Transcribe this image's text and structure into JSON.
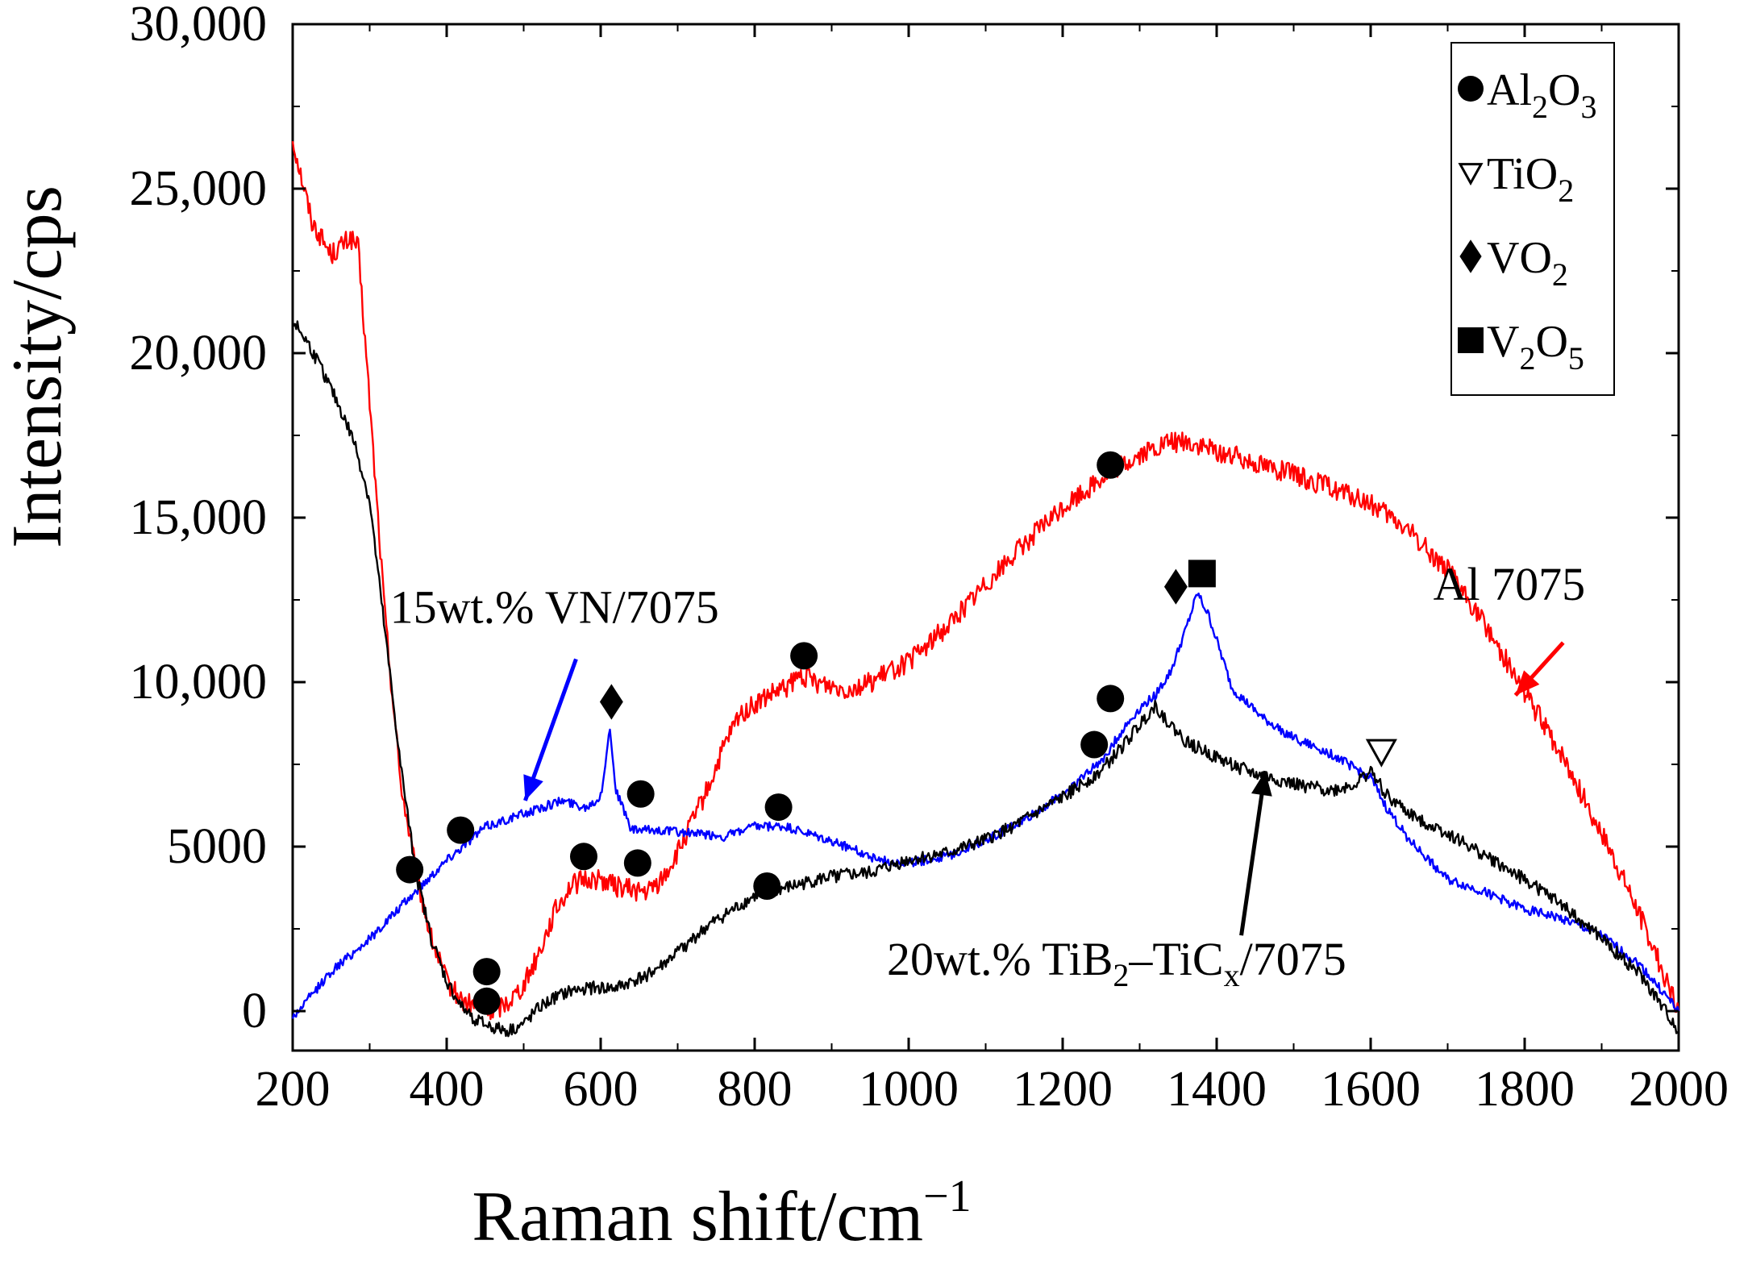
{
  "chart_data": {
    "type": "line",
    "title": "",
    "xlabel": "Raman shift/cm",
    "xlabel_superscript": "−1",
    "ylabel": "Intensity/cps",
    "xlim": [
      200,
      2000
    ],
    "ylim": [
      -1200,
      30000
    ],
    "grid": false,
    "x_ticks": [
      200,
      400,
      600,
      800,
      1000,
      1200,
      1400,
      1600,
      1800,
      2000
    ],
    "x_tick_labels": [
      "200",
      "400",
      "600",
      "800",
      "1000",
      "1200",
      "1400",
      "1600",
      "1800",
      "2000"
    ],
    "y_ticks": [
      0,
      5000,
      10000,
      15000,
      20000,
      25000,
      30000
    ],
    "y_tick_labels": [
      "0",
      "5000",
      "10,000",
      "15,000",
      "20,000",
      "25,000",
      "30,000"
    ],
    "series": [
      {
        "name": "Al 7075",
        "color": "#ff0000",
        "x": [
          200,
          225,
          250,
          275,
          285,
          300,
          320,
          340,
          360,
          380,
          400,
          420,
          440,
          460,
          480,
          500,
          520,
          540,
          560,
          580,
          600,
          620,
          640,
          660,
          680,
          700,
          720,
          740,
          760,
          780,
          800,
          820,
          840,
          860,
          880,
          900,
          920,
          940,
          960,
          980,
          1000,
          1050,
          1100,
          1150,
          1200,
          1250,
          1300,
          1340,
          1360,
          1400,
          1450,
          1500,
          1550,
          1600,
          1650,
          1700,
          1750,
          1800,
          1850,
          1900,
          1950,
          2000
        ],
        "y": [
          26500,
          24000,
          23000,
          23500,
          23200,
          18500,
          12000,
          7000,
          4200,
          2200,
          900,
          300,
          100,
          0,
          300,
          800,
          1800,
          3000,
          3800,
          4000,
          4000,
          3800,
          3700,
          3600,
          4000,
          4800,
          5800,
          6800,
          8000,
          9000,
          9300,
          9600,
          9800,
          10200,
          10000,
          9900,
          9800,
          9900,
          10100,
          10400,
          10600,
          11700,
          13000,
          14200,
          15300,
          16200,
          16900,
          17300,
          17300,
          17000,
          16700,
          16300,
          15900,
          15400,
          14600,
          13400,
          11700,
          9700,
          7700,
          5400,
          2900,
          0
        ]
      },
      {
        "name": "15wt.% VN/7075",
        "color": "#0000ff",
        "x": [
          200,
          250,
          300,
          350,
          400,
          450,
          500,
          550,
          580,
          600,
          612,
          620,
          640,
          680,
          720,
          760,
          800,
          840,
          880,
          920,
          960,
          1000,
          1050,
          1100,
          1150,
          1200,
          1250,
          1280,
          1300,
          1320,
          1340,
          1360,
          1375,
          1390,
          1420,
          1460,
          1500,
          1550,
          1600,
          1620,
          1650,
          1700,
          1750,
          1800,
          1850,
          1900,
          1950,
          2000
        ],
        "y": [
          -200,
          1200,
          2200,
          3400,
          4600,
          5600,
          6000,
          6400,
          6200,
          6500,
          8600,
          6700,
          5500,
          5500,
          5400,
          5300,
          5600,
          5600,
          5300,
          5000,
          4600,
          4500,
          4700,
          5200,
          5800,
          6600,
          7600,
          8600,
          9200,
          9600,
          10300,
          11600,
          12700,
          12000,
          9800,
          8900,
          8300,
          7800,
          7100,
          6200,
          5200,
          4000,
          3600,
          3100,
          2800,
          2300,
          1400,
          0
        ]
      },
      {
        "name": "20wt.% TiB2–TiCx/7075",
        "color": "#000000",
        "x": [
          200,
          220,
          240,
          260,
          280,
          300,
          320,
          340,
          360,
          380,
          400,
          420,
          440,
          460,
          480,
          500,
          520,
          540,
          560,
          580,
          600,
          620,
          640,
          660,
          680,
          700,
          720,
          740,
          760,
          780,
          800,
          850,
          900,
          950,
          1000,
          1050,
          1100,
          1150,
          1200,
          1250,
          1280,
          1300,
          1320,
          1340,
          1360,
          1400,
          1450,
          1500,
          1550,
          1580,
          1600,
          1620,
          1650,
          1700,
          1750,
          1800,
          1850,
          1900,
          1950,
          2000
        ],
        "y": [
          21000,
          20300,
          19400,
          18400,
          17300,
          15500,
          11500,
          7500,
          4200,
          2200,
          900,
          100,
          -300,
          -500,
          -600,
          -400,
          100,
          400,
          600,
          700,
          700,
          700,
          900,
          1100,
          1400,
          1800,
          2200,
          2600,
          2900,
          3200,
          3500,
          3800,
          4100,
          4200,
          4600,
          4800,
          5200,
          5800,
          6500,
          7300,
          8100,
          8700,
          9300,
          8700,
          8200,
          7700,
          7200,
          6900,
          6700,
          6900,
          7300,
          6600,
          6000,
          5400,
          4700,
          4000,
          3200,
          2200,
          1100,
          -600
        ]
      }
    ],
    "legend": {
      "position": "top-right",
      "entries": [
        {
          "marker": "circle",
          "label": "Al",
          "sub1": "2",
          "label2": "O",
          "sub2": "3"
        },
        {
          "marker": "triangle-down-open",
          "label": "TiO",
          "sub1": "2",
          "label2": "",
          "sub2": ""
        },
        {
          "marker": "diamond",
          "label": "VO",
          "sub1": "2",
          "label2": "",
          "sub2": ""
        },
        {
          "marker": "square",
          "label": "V",
          "sub1": "2",
          "label2": "O",
          "sub2": "5"
        }
      ]
    },
    "phase_markers": [
      {
        "phase": "Al2O3",
        "marker": "circle",
        "x": 352,
        "y": 4300
      },
      {
        "phase": "Al2O3",
        "marker": "circle",
        "x": 418,
        "y": 5500
      },
      {
        "phase": "Al2O3",
        "marker": "circle",
        "x": 452,
        "y": 1200
      },
      {
        "phase": "Al2O3",
        "marker": "circle",
        "x": 452,
        "y": 300
      },
      {
        "phase": "Al2O3",
        "marker": "circle",
        "x": 578,
        "y": 4700
      },
      {
        "phase": "Al2O3",
        "marker": "circle",
        "x": 648,
        "y": 4500
      },
      {
        "phase": "Al2O3",
        "marker": "circle",
        "x": 652,
        "y": 6600
      },
      {
        "phase": "Al2O3",
        "marker": "circle",
        "x": 816,
        "y": 3800
      },
      {
        "phase": "Al2O3",
        "marker": "circle",
        "x": 831,
        "y": 6200
      },
      {
        "phase": "Al2O3",
        "marker": "circle",
        "x": 864,
        "y": 10800
      },
      {
        "phase": "Al2O3",
        "marker": "circle",
        "x": 1241,
        "y": 8100
      },
      {
        "phase": "Al2O3",
        "marker": "circle",
        "x": 1262,
        "y": 9500
      },
      {
        "phase": "Al2O3",
        "marker": "circle",
        "x": 1262,
        "y": 16600
      },
      {
        "phase": "VO2",
        "marker": "diamond",
        "x": 614,
        "y": 9400
      },
      {
        "phase": "VO2",
        "marker": "diamond",
        "x": 1347,
        "y": 12900
      },
      {
        "phase": "V2O5",
        "marker": "square",
        "x": 1381,
        "y": 13300
      },
      {
        "phase": "TiO2",
        "marker": "triangle-down-open",
        "x": 1614,
        "y": 7900
      }
    ],
    "annotations": [
      {
        "text": "15wt.% VN/7075",
        "series": "15wt.% VN/7075",
        "color": "#0000ff",
        "label_x": 540,
        "label_y": 11800,
        "arrow_from": [
          568,
          10700
        ],
        "arrow_to": [
          502,
          6400
        ]
      },
      {
        "text": "Al 7075",
        "series": "Al 7075",
        "color": "#ff0000",
        "label_x": 1780,
        "label_y": 12500,
        "arrow_from": [
          1850,
          11200
        ],
        "arrow_to": [
          1788,
          9600
        ]
      },
      {
        "text": "20wt.% TiB",
        "sub1": "2",
        "text2": "–TiC",
        "sub2": "x",
        "text3": "/7075",
        "series": "20wt.% TiB2–TiCx/7075",
        "color": "#000000",
        "label_x": 1270,
        "label_y": 1100,
        "arrow_from": [
          1432,
          2300
        ],
        "arrow_to": [
          1463,
          7300
        ]
      }
    ]
  }
}
